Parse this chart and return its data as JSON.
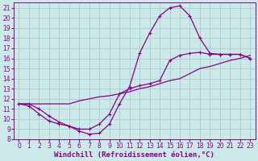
{
  "xlabel": "Windchill (Refroidissement éolien,°C)",
  "xlim": [
    -0.5,
    23.5
  ],
  "ylim": [
    8,
    21.5
  ],
  "xticks": [
    0,
    1,
    2,
    3,
    4,
    5,
    6,
    7,
    8,
    9,
    10,
    11,
    12,
    13,
    14,
    15,
    16,
    17,
    18,
    19,
    20,
    21,
    22,
    23
  ],
  "yticks": [
    8,
    9,
    10,
    11,
    12,
    13,
    14,
    15,
    16,
    17,
    18,
    19,
    20,
    21
  ],
  "background_color": "#cbe9e9",
  "line_color": "#880088",
  "grid_color": "#aacccc",
  "curve1_x": [
    0,
    1,
    2,
    3,
    4,
    5,
    6,
    7,
    8,
    9,
    10,
    11,
    12,
    13,
    14,
    15,
    16,
    17,
    18,
    19,
    20,
    21,
    22,
    23
  ],
  "curve1_y": [
    11.5,
    11.5,
    11.0,
    10.3,
    9.7,
    9.3,
    8.8,
    8.5,
    8.6,
    9.5,
    11.5,
    13.2,
    16.5,
    18.5,
    20.2,
    21.0,
    21.2,
    20.2,
    18.0,
    16.5,
    16.4,
    16.4,
    16.4,
    16.0
  ],
  "curve2_x": [
    0,
    1,
    2,
    3,
    4,
    5,
    6,
    7,
    8,
    9,
    10,
    11,
    12,
    13,
    14,
    15,
    16,
    17,
    18,
    19,
    20,
    21,
    22,
    23
  ],
  "curve2_y": [
    11.5,
    11.5,
    11.5,
    11.5,
    11.5,
    11.5,
    11.8,
    12.0,
    12.2,
    12.3,
    12.5,
    12.7,
    13.0,
    13.2,
    13.5,
    13.8,
    14.0,
    14.5,
    15.0,
    15.2,
    15.5,
    15.8,
    16.0,
    16.3
  ],
  "curve3_x": [
    0,
    1,
    2,
    3,
    4,
    5,
    6,
    7,
    8,
    9,
    10,
    11,
    12,
    13,
    14,
    15,
    16,
    17,
    18,
    19,
    20,
    21,
    22,
    23
  ],
  "curve3_y": [
    11.5,
    11.3,
    10.5,
    9.8,
    9.5,
    9.3,
    9.0,
    9.0,
    9.5,
    10.5,
    12.5,
    13.0,
    13.3,
    13.5,
    13.8,
    15.8,
    16.3,
    16.5,
    16.6,
    16.4,
    16.4,
    16.4,
    16.4,
    16.0
  ],
  "font_size_label": 6.5,
  "font_size_tick": 5.5
}
